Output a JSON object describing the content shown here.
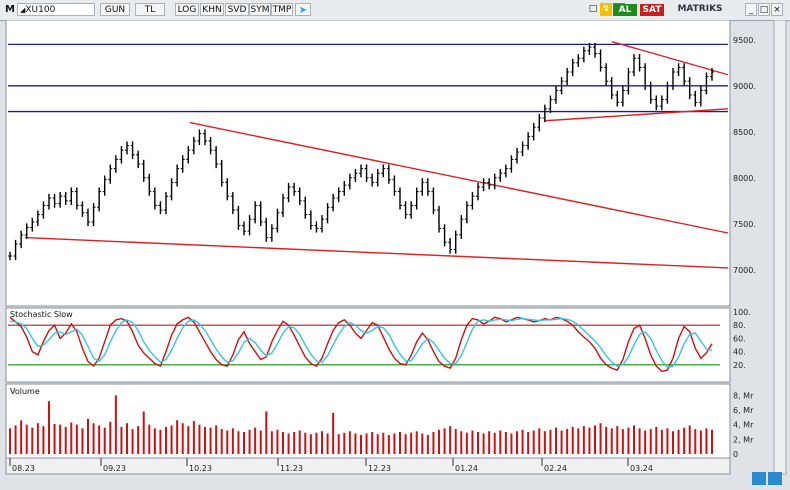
{
  "toolbar": {
    "m_label": "M",
    "symbol": "XU100",
    "period": "GUN",
    "currency": "TL",
    "buttons": [
      "LOG",
      "KHN",
      "SVD",
      "SYM",
      "TMP"
    ],
    "al_label": "AL",
    "sat_label": "SAT",
    "brand": "MATRIKS"
  },
  "colors": {
    "trendline": "#e02020",
    "level_line": "#1a1aa0",
    "stoch_k": "#d01010",
    "stoch_d": "#30c8e0",
    "volume": "#d01010",
    "overbought": "#b02020",
    "oversold": "#109010"
  },
  "chart_data": [
    {
      "type": "line",
      "subtype": "ohlc",
      "title": "XU100",
      "x_ticks": [
        "08.23",
        "09.23",
        "10.23",
        "11.23",
        "12.23",
        "01.24",
        "02.24",
        "03.24"
      ],
      "y_ticks": [
        7000,
        7500,
        8000,
        8500,
        9000,
        9500
      ],
      "ylim": [
        6650,
        9650
      ],
      "horizontal_levels": [
        9450,
        9000,
        8720
      ],
      "close_series": [
        7150,
        7280,
        7380,
        7460,
        7520,
        7600,
        7700,
        7780,
        7720,
        7800,
        7750,
        7850,
        7700,
        7620,
        7520,
        7680,
        7850,
        7980,
        8100,
        8200,
        8300,
        8350,
        8250,
        8150,
        8000,
        7850,
        7700,
        7650,
        7800,
        7950,
        8100,
        8200,
        8300,
        8400,
        8480,
        8400,
        8300,
        8150,
        7950,
        7800,
        7650,
        7480,
        7420,
        7550,
        7700,
        7520,
        7350,
        7450,
        7620,
        7780,
        7900,
        7850,
        7750,
        7600,
        7480,
        7450,
        7550,
        7680,
        7780,
        7850,
        7920,
        8000,
        8050,
        8100,
        8000,
        7950,
        8050,
        8100,
        7980,
        7850,
        7700,
        7600,
        7700,
        7850,
        7950,
        7850,
        7650,
        7450,
        7300,
        7220,
        7380,
        7550,
        7700,
        7800,
        7900,
        7950,
        7920,
        8000,
        8050,
        8100,
        8200,
        8280,
        8350,
        8450,
        8550,
        8650,
        8750,
        8850,
        8950,
        9050,
        9150,
        9250,
        9300,
        9380,
        9420,
        9350,
        9200,
        9050,
        8900,
        8820,
        8950,
        9150,
        9300,
        9200,
        9000,
        8850,
        8780,
        8850,
        9000,
        9150,
        9200,
        9050,
        8900,
        8820,
        8950,
        9100,
        9150
      ],
      "trendlines": [
        {
          "from": [
            "10.23",
            8600
          ],
          "to": [
            "end",
            7400
          ]
        },
        {
          "from": [
            "08.23",
            7350
          ],
          "to": [
            "end",
            7020
          ]
        },
        {
          "from": [
            "02.24",
            9480
          ],
          "to": [
            "end",
            9120
          ]
        },
        {
          "from": [
            "02.24",
            8620
          ],
          "to": [
            "end",
            8750
          ]
        }
      ]
    },
    {
      "type": "line",
      "title": "Stochastic Slow",
      "y_ticks": [
        20,
        40,
        60,
        80,
        100
      ],
      "ylim": [
        0,
        100
      ],
      "levels": [
        80,
        20
      ],
      "series": [
        {
          "values": [
            92,
            85,
            78,
            62,
            40,
            35,
            55,
            72,
            80,
            60,
            68,
            82,
            70,
            45,
            25,
            18,
            30,
            55,
            80,
            88,
            90,
            86,
            70,
            50,
            38,
            30,
            22,
            18,
            40,
            65,
            82,
            88,
            92,
            85,
            70,
            55,
            40,
            28,
            20,
            18,
            35,
            58,
            70,
            52,
            40,
            28,
            32,
            55,
            72,
            86,
            80,
            65,
            48,
            32,
            22,
            18,
            30,
            52,
            72,
            84,
            88,
            80,
            68,
            60,
            72,
            84,
            80,
            62,
            44,
            30,
            22,
            20,
            34,
            55,
            68,
            58,
            40,
            25,
            18,
            15,
            30,
            58,
            80,
            90,
            88,
            82,
            86,
            92,
            90,
            85,
            88,
            92,
            90,
            88,
            85,
            87,
            90,
            88,
            92,
            90,
            86,
            80,
            70,
            62,
            55,
            45,
            30,
            20,
            15,
            12,
            28,
            55,
            75,
            80,
            60,
            35,
            18,
            10,
            12,
            30,
            60,
            78,
            70,
            45,
            30,
            38,
            52
          ]
        },
        {
          "values": [
            86,
            85,
            82,
            75,
            60,
            48,
            50,
            58,
            68,
            70,
            66,
            70,
            74,
            65,
            48,
            30,
            25,
            35,
            55,
            72,
            84,
            88,
            84,
            72,
            55,
            42,
            32,
            24,
            28,
            42,
            60,
            76,
            86,
            88,
            82,
            72,
            58,
            44,
            32,
            24,
            26,
            38,
            54,
            60,
            54,
            42,
            34,
            38,
            52,
            68,
            78,
            76,
            66,
            50,
            36,
            26,
            24,
            34,
            50,
            66,
            78,
            84,
            80,
            72,
            68,
            72,
            78,
            76,
            66,
            50,
            36,
            26,
            26,
            38,
            52,
            60,
            54,
            42,
            30,
            22,
            22,
            34,
            54,
            74,
            86,
            88,
            86,
            88,
            89,
            88,
            87,
            89,
            90,
            89,
            88,
            87,
            88,
            88,
            89,
            90,
            89,
            86,
            80,
            72,
            64,
            56,
            46,
            34,
            24,
            18,
            20,
            32,
            50,
            66,
            70,
            60,
            42,
            26,
            16,
            18,
            32,
            52,
            66,
            68,
            56,
            44,
            42
          ]
        }
      ]
    },
    {
      "type": "bar",
      "title": "Volume",
      "y_ticks": [
        "8, Mr",
        "6, Mr",
        "4, Mr",
        "2, Mr",
        "0"
      ],
      "ylim": [
        0,
        9
      ],
      "values": [
        3.5,
        3.9,
        4.6,
        4.0,
        3.6,
        4.2,
        3.8,
        5.0,
        4.1,
        4.0,
        3.7,
        4.3,
        4.0,
        3.5,
        4.8,
        4.2,
        3.9,
        3.6,
        4.4,
        3.9,
        3.7,
        4.2,
        3.4,
        3.8,
        3.6,
        4.0,
        3.5,
        3.3,
        3.7,
        3.9,
        4.6,
        4.2,
        3.8,
        4.5,
        4.0,
        3.7,
        3.6,
        3.9,
        3.4,
        3.2,
        3.5,
        3.1,
        3.0,
        3.3,
        3.6,
        3.2,
        2.9,
        3.1,
        3.3,
        3.0,
        2.8,
        3.0,
        3.2,
        2.9,
        2.7,
        2.9,
        3.1,
        2.8,
        3.0,
        2.7,
        2.9,
        3.1,
        2.8,
        2.6,
        2.8,
        3.0,
        2.7,
        2.9,
        2.6,
        2.8,
        3.0,
        2.7,
        2.9,
        3.1,
        2.8,
        2.6,
        3.0,
        3.3,
        3.5,
        3.8,
        3.4,
        3.1,
        2.9,
        3.2,
        3.0,
        2.8,
        3.1,
        2.9,
        3.2,
        3.0,
        2.8,
        3.1,
        3.3,
        3.0,
        3.2,
        3.5,
        3.1,
        3.3,
        3.6,
        3.2,
        3.4,
        3.7,
        3.5,
        3.8,
        3.6,
        3.9,
        4.2,
        3.7,
        3.5,
        3.8,
        3.4,
        3.6,
        3.9,
        3.5,
        3.2,
        3.4,
        3.7,
        3.3,
        3.5,
        3.1,
        3.3,
        3.6,
        3.9,
        3.4,
        3.2,
        3.5,
        3.3
      ],
      "outliers": [
        {
          "index": 7,
          "value": 7.2
        },
        {
          "index": 19,
          "value": 8.0
        },
        {
          "index": 24,
          "value": 5.8
        },
        {
          "index": 46,
          "value": 5.8
        },
        {
          "index": 58,
          "value": 5.6
        }
      ]
    }
  ]
}
